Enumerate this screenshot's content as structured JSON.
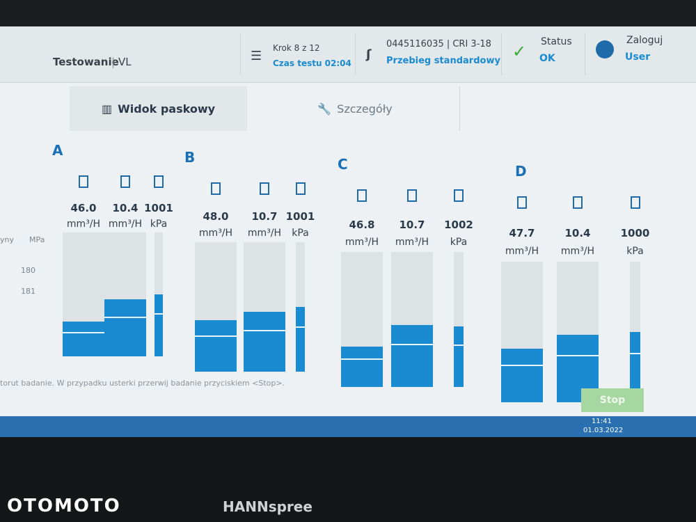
{
  "header": {
    "title": "Testowanie",
    "mode": "VL",
    "step": "Krok 8 z 12",
    "test_time": "Czas testu 02:04",
    "part": "0445116035 | CRI 3-18",
    "program": "Przebieg standardowy",
    "status_label": "Status",
    "status_value": "OK",
    "login_label": "Zaloguj",
    "user": "User"
  },
  "tabs": [
    "Widok paskowy",
    "Szczegóły"
  ],
  "side_panel": {
    "headers": [
      "yny",
      "MPa"
    ],
    "values": [
      "180",
      "181"
    ]
  },
  "groups": [
    {
      "name": "A",
      "channels": [
        {
          "value": "46.0",
          "unit": "mm³/H"
        },
        {
          "value": "10.4",
          "unit": "mm³/H"
        },
        {
          "value": "1001",
          "unit": "kPa"
        }
      ]
    },
    {
      "name": "B",
      "channels": [
        {
          "value": "48.0",
          "unit": "mm³/H"
        },
        {
          "value": "10.7",
          "unit": "mm³/H"
        },
        {
          "value": "1001",
          "unit": "kPa"
        }
      ]
    },
    {
      "name": "C",
      "channels": [
        {
          "value": "46.8",
          "unit": "mm³/H"
        },
        {
          "value": "10.7",
          "unit": "mm³/H"
        },
        {
          "value": "1002",
          "unit": "kPa"
        }
      ]
    },
    {
      "name": "D",
      "channels": [
        {
          "value": "47.7",
          "unit": "mm³/H"
        },
        {
          "value": "10.4",
          "unit": "mm³/H"
        },
        {
          "value": "1000",
          "unit": "kPa"
        }
      ]
    }
  ],
  "message": "torut badanie. W przypadku usterki przerwij badanie przyciskiem <Stop>.",
  "stop_button": "Stop",
  "taskbar": {
    "time": "11:41",
    "date": "01.03.2022"
  },
  "monitor_brand": "HANNspree",
  "watermark": "OTOMOTO"
}
